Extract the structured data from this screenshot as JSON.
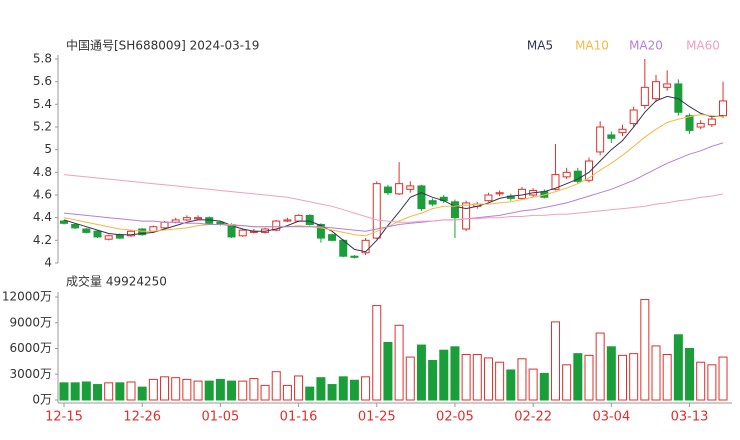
{
  "chart_data": [
    {
      "type": "candlestick",
      "title": "中国通号[SH688009] 2024-03-19",
      "categories": [
        "12-15",
        null,
        null,
        null,
        null,
        null,
        null,
        "12-26",
        null,
        null,
        null,
        null,
        null,
        null,
        "01-05",
        null,
        null,
        null,
        null,
        null,
        null,
        "01-16",
        null,
        null,
        null,
        null,
        null,
        null,
        "01-25",
        null,
        null,
        null,
        null,
        null,
        null,
        "02-05",
        null,
        null,
        null,
        null,
        null,
        null,
        "02-22",
        null,
        null,
        null,
        null,
        null,
        null,
        "03-04",
        null,
        null,
        null,
        null,
        null,
        null,
        "03-13",
        null,
        null,
        null
      ],
      "open": [
        4.37,
        4.34,
        4.3,
        4.28,
        4.21,
        4.25,
        4.24,
        4.3,
        4.28,
        4.31,
        4.36,
        4.38,
        4.39,
        4.4,
        4.36,
        4.34,
        4.24,
        4.27,
        4.27,
        4.29,
        4.37,
        4.37,
        4.42,
        4.34,
        4.25,
        4.2,
        4.06,
        4.09,
        4.22,
        4.67,
        4.61,
        4.65,
        4.68,
        4.55,
        4.58,
        4.54,
        4.3,
        4.5,
        4.55,
        4.61,
        4.59,
        4.57,
        4.6,
        4.63,
        4.65,
        4.76,
        4.81,
        4.73,
        4.98,
        5.13,
        5.15,
        5.23,
        5.39,
        5.45,
        5.55,
        5.58,
        5.3,
        5.2,
        5.22,
        5.3
      ],
      "high": [
        4.38,
        4.35,
        4.31,
        4.29,
        4.25,
        4.26,
        4.29,
        4.31,
        4.33,
        4.37,
        4.4,
        4.42,
        4.42,
        4.41,
        4.37,
        4.35,
        4.3,
        4.3,
        4.31,
        4.38,
        4.4,
        4.43,
        4.43,
        4.35,
        4.26,
        4.21,
        4.07,
        4.22,
        4.72,
        4.69,
        4.89,
        4.72,
        4.69,
        4.57,
        4.6,
        4.56,
        4.55,
        4.54,
        4.62,
        4.64,
        4.61,
        4.67,
        4.66,
        4.65,
        5.05,
        4.84,
        4.84,
        4.93,
        5.25,
        5.16,
        5.22,
        5.38,
        5.8,
        5.66,
        5.7,
        5.62,
        5.32,
        5.26,
        5.3,
        5.6
      ],
      "low": [
        4.34,
        4.3,
        4.26,
        4.22,
        4.2,
        4.21,
        4.23,
        4.24,
        4.27,
        4.3,
        4.35,
        4.37,
        4.38,
        4.34,
        4.33,
        4.22,
        4.23,
        4.26,
        4.26,
        4.28,
        4.36,
        4.36,
        4.33,
        4.18,
        4.19,
        4.05,
        4.04,
        4.07,
        4.21,
        4.6,
        4.6,
        4.62,
        4.46,
        4.5,
        4.53,
        4.22,
        4.28,
        4.48,
        4.54,
        4.59,
        4.55,
        4.56,
        4.58,
        4.57,
        4.64,
        4.74,
        4.7,
        4.71,
        4.95,
        5.06,
        5.12,
        5.2,
        5.36,
        5.42,
        5.52,
        5.3,
        5.14,
        5.18,
        5.2,
        5.28
      ],
      "close": [
        4.35,
        4.31,
        4.27,
        4.23,
        4.24,
        4.22,
        4.28,
        4.25,
        4.32,
        4.36,
        4.38,
        4.4,
        4.4,
        4.35,
        4.34,
        4.23,
        4.29,
        4.28,
        4.3,
        4.37,
        4.38,
        4.42,
        4.34,
        4.22,
        4.2,
        4.06,
        4.05,
        4.2,
        4.7,
        4.62,
        4.7,
        4.68,
        4.48,
        4.52,
        4.55,
        4.4,
        4.53,
        4.52,
        4.6,
        4.62,
        4.57,
        4.65,
        4.64,
        4.58,
        4.78,
        4.8,
        4.72,
        4.9,
        5.2,
        5.1,
        5.18,
        5.35,
        5.55,
        5.6,
        5.58,
        5.33,
        5.17,
        5.23,
        5.27,
        5.43
      ],
      "up_color": "#e0302b",
      "down_color": "#1a9e3a",
      "series": [
        {
          "name": "MA5",
          "color": "#333355",
          "values": [
            4.38,
            4.35,
            4.32,
            4.29,
            4.26,
            4.25,
            4.25,
            4.26,
            4.27,
            4.3,
            4.33,
            4.36,
            4.38,
            4.38,
            4.37,
            4.33,
            4.3,
            4.28,
            4.28,
            4.3,
            4.33,
            4.37,
            4.37,
            4.33,
            4.28,
            4.2,
            4.12,
            4.1,
            4.2,
            4.33,
            4.45,
            4.58,
            4.62,
            4.58,
            4.55,
            4.5,
            4.48,
            4.5,
            4.53,
            4.57,
            4.59,
            4.6,
            4.62,
            4.63,
            4.66,
            4.7,
            4.74,
            4.8,
            4.9,
            5.0,
            5.08,
            5.2,
            5.33,
            5.43,
            5.47,
            5.45,
            5.38,
            5.32,
            5.29,
            5.3
          ]
        },
        {
          "name": "MA10",
          "color": "#f5b942",
          "values": [
            4.4,
            4.38,
            4.36,
            4.34,
            4.32,
            4.3,
            4.29,
            4.28,
            4.28,
            4.29,
            4.3,
            4.31,
            4.33,
            4.34,
            4.34,
            4.34,
            4.33,
            4.32,
            4.32,
            4.32,
            4.32,
            4.33,
            4.32,
            4.31,
            4.29,
            4.27,
            4.25,
            4.24,
            4.28,
            4.32,
            4.37,
            4.41,
            4.44,
            4.48,
            4.5,
            4.5,
            4.51,
            4.52,
            4.52,
            4.53,
            4.54,
            4.56,
            4.58,
            4.6,
            4.63,
            4.66,
            4.7,
            4.75,
            4.82,
            4.88,
            4.95,
            5.03,
            5.11,
            5.18,
            5.24,
            5.27,
            5.29,
            5.31,
            5.3,
            5.29
          ]
        },
        {
          "name": "MA20",
          "color": "#b57edc",
          "values": [
            4.44,
            4.43,
            4.42,
            4.41,
            4.4,
            4.39,
            4.38,
            4.37,
            4.37,
            4.36,
            4.36,
            4.35,
            4.35,
            4.34,
            4.34,
            4.33,
            4.33,
            4.32,
            4.32,
            4.32,
            4.32,
            4.32,
            4.32,
            4.32,
            4.31,
            4.3,
            4.29,
            4.28,
            4.3,
            4.32,
            4.34,
            4.35,
            4.36,
            4.37,
            4.38,
            4.38,
            4.39,
            4.4,
            4.41,
            4.42,
            4.44,
            4.46,
            4.47,
            4.49,
            4.51,
            4.53,
            4.56,
            4.59,
            4.62,
            4.65,
            4.69,
            4.73,
            4.78,
            4.83,
            4.88,
            4.92,
            4.96,
            4.99,
            5.03,
            5.06
          ]
        },
        {
          "name": "MA60",
          "color": "#f2a0c0",
          "values": [
            4.78,
            4.77,
            4.76,
            4.75,
            4.74,
            4.73,
            4.72,
            4.71,
            4.7,
            4.69,
            4.68,
            4.67,
            4.66,
            4.65,
            4.64,
            4.63,
            4.62,
            4.61,
            4.6,
            4.59,
            4.58,
            4.56,
            4.54,
            4.52,
            4.5,
            4.47,
            4.44,
            4.41,
            4.38,
            4.37,
            4.36,
            4.36,
            4.37,
            4.37,
            4.38,
            4.38,
            4.39,
            4.39,
            4.4,
            4.4,
            4.41,
            4.41,
            4.42,
            4.42,
            4.43,
            4.43,
            4.44,
            4.45,
            4.46,
            4.47,
            4.48,
            4.49,
            4.5,
            4.52,
            4.53,
            4.55,
            4.56,
            4.58,
            4.59,
            4.61
          ]
        }
      ],
      "ylim": [
        4,
        5.8
      ],
      "yticks": [
        4,
        4.2,
        4.4,
        4.6,
        4.8,
        5,
        5.2,
        5.4,
        5.6,
        5.8
      ]
    },
    {
      "type": "bar",
      "title": "成交量 49924250",
      "values": [
        2000,
        2000,
        2100,
        1800,
        2000,
        2000,
        2100,
        1500,
        2400,
        2700,
        2600,
        2400,
        2200,
        2200,
        2400,
        2200,
        2200,
        2500,
        1700,
        3300,
        1700,
        2800,
        1500,
        2600,
        1800,
        2700,
        2300,
        2700,
        11000,
        6700,
        8700,
        5000,
        6400,
        4600,
        5800,
        6200,
        5300,
        5300,
        4900,
        4400,
        3500,
        4800,
        3600,
        3100,
        9100,
        4100,
        5400,
        5200,
        7800,
        6200,
        5200,
        5400,
        11700,
        6300,
        5300,
        7600,
        6000,
        4400,
        4100,
        5000
      ],
      "ylim": [
        0,
        12000
      ],
      "yticks": [
        {
          "value": 0,
          "label": "0万"
        },
        {
          "value": 3000,
          "label": "3000万"
        },
        {
          "value": 6000,
          "label": "6000万"
        },
        {
          "value": 9000,
          "label": "9000万"
        },
        {
          "value": 12000,
          "label": "12000万"
        }
      ]
    }
  ]
}
